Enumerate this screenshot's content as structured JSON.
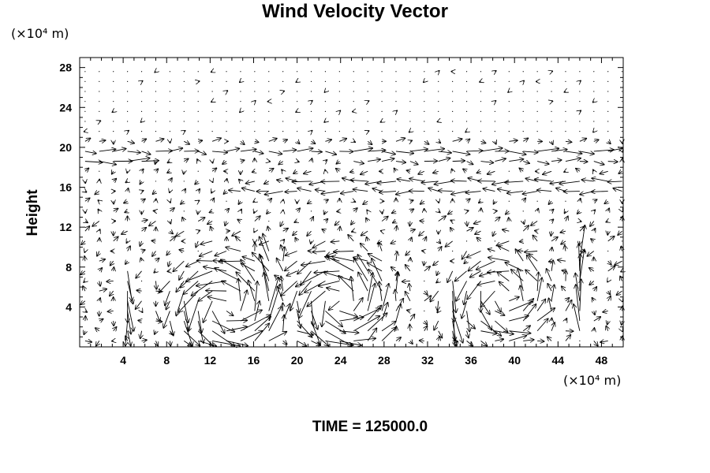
{
  "chart_data": {
    "type": "vector-field",
    "title": "Wind Velocity Vector",
    "ylabel": "Height",
    "xlabel": "",
    "x_unit": "(×10⁴ m)",
    "y_unit": "(×10⁴ m)",
    "footer": "TIME = 125000.0",
    "xlim": [
      0,
      50
    ],
    "ylim": [
      0,
      29
    ],
    "x_ticks": [
      4,
      8,
      12,
      16,
      20,
      24,
      28,
      32,
      36,
      40,
      44,
      48
    ],
    "y_ticks": [
      4,
      8,
      12,
      16,
      20,
      24,
      28
    ],
    "grid": false,
    "field": {
      "x_start": 0.5,
      "x_step": 1.3,
      "nx": 39,
      "y_start": 0.6,
      "y_step": 1.0,
      "ny": 28,
      "scale": 1.0
    },
    "circulations": [
      {
        "center": [
          13.5,
          4.0
        ],
        "radius": 3.8,
        "strength": 2.4,
        "rotation": "counterclockwise"
      },
      {
        "center": [
          24.0,
          4.5
        ],
        "radius": 3.8,
        "strength": 2.4,
        "rotation": "counterclockwise"
      },
      {
        "center": [
          39.0,
          5.0
        ],
        "radius": 3.5,
        "strength": 1.8,
        "rotation": "counterclockwise"
      }
    ],
    "jets": [
      {
        "height": 20.0,
        "x_range": [
          0,
          50
        ],
        "u": 2.6
      },
      {
        "height": 16.0,
        "x_range": [
          14,
          50
        ],
        "u": -2.8
      },
      {
        "height": 17.0,
        "x_range": [
          20,
          50
        ],
        "u": -2.2
      },
      {
        "height": 19.0,
        "x_range": [
          24,
          50
        ],
        "u": 2.2
      },
      {
        "height": 18.5,
        "x_range": [
          0,
          6
        ],
        "u": 1.8
      }
    ],
    "updrafts": [
      {
        "x": 4.5,
        "y_range": [
          1,
          8
        ],
        "v": -2.6
      },
      {
        "x": 18.0,
        "y_range": [
          1,
          10
        ],
        "v": 3.0
      },
      {
        "x": 34.0,
        "y_range": [
          1,
          7
        ],
        "v": -2.6
      },
      {
        "x": 46.0,
        "y_range": [
          1,
          9
        ],
        "v": 2.8
      }
    ]
  }
}
